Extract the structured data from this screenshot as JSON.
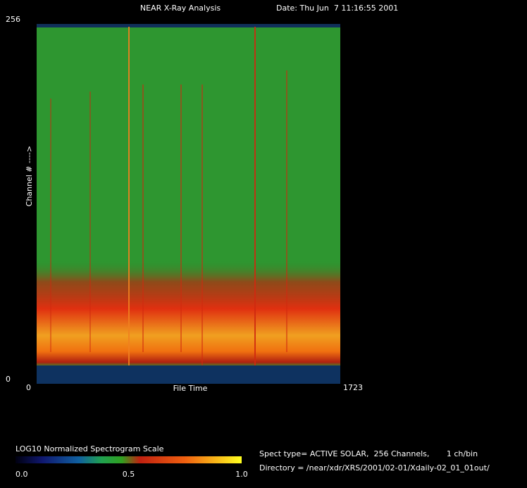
{
  "chart_data": {
    "type": "spectrogram",
    "title": "NEAR X-Ray Analysis",
    "date": "Date: Thu Jun  7 11:16:55 2001",
    "xlabel": "File Time",
    "ylabel": "Channel # ---->",
    "xlim": [
      0,
      1723
    ],
    "xticks": [
      0,
      1723
    ],
    "ylim": [
      0,
      256
    ],
    "yticks": [
      0,
      256
    ],
    "colorbar": {
      "title": "LOG10 Normalized Spectrogram Scale",
      "lim": [
        0,
        1
      ],
      "ticks": [
        {
          "value": 0,
          "label": "0.0"
        },
        {
          "value": 0.5,
          "label": "0.5"
        },
        {
          "value": 1,
          "label": "1.0"
        }
      ]
    },
    "info": [
      "Spect type= ACTIVE SOLAR,  256 Channels,       1 ch/bin",
      "Directory = /near/xdr/XRS/2001/02-01/Xdaily-02_01_01out/"
    ]
  }
}
